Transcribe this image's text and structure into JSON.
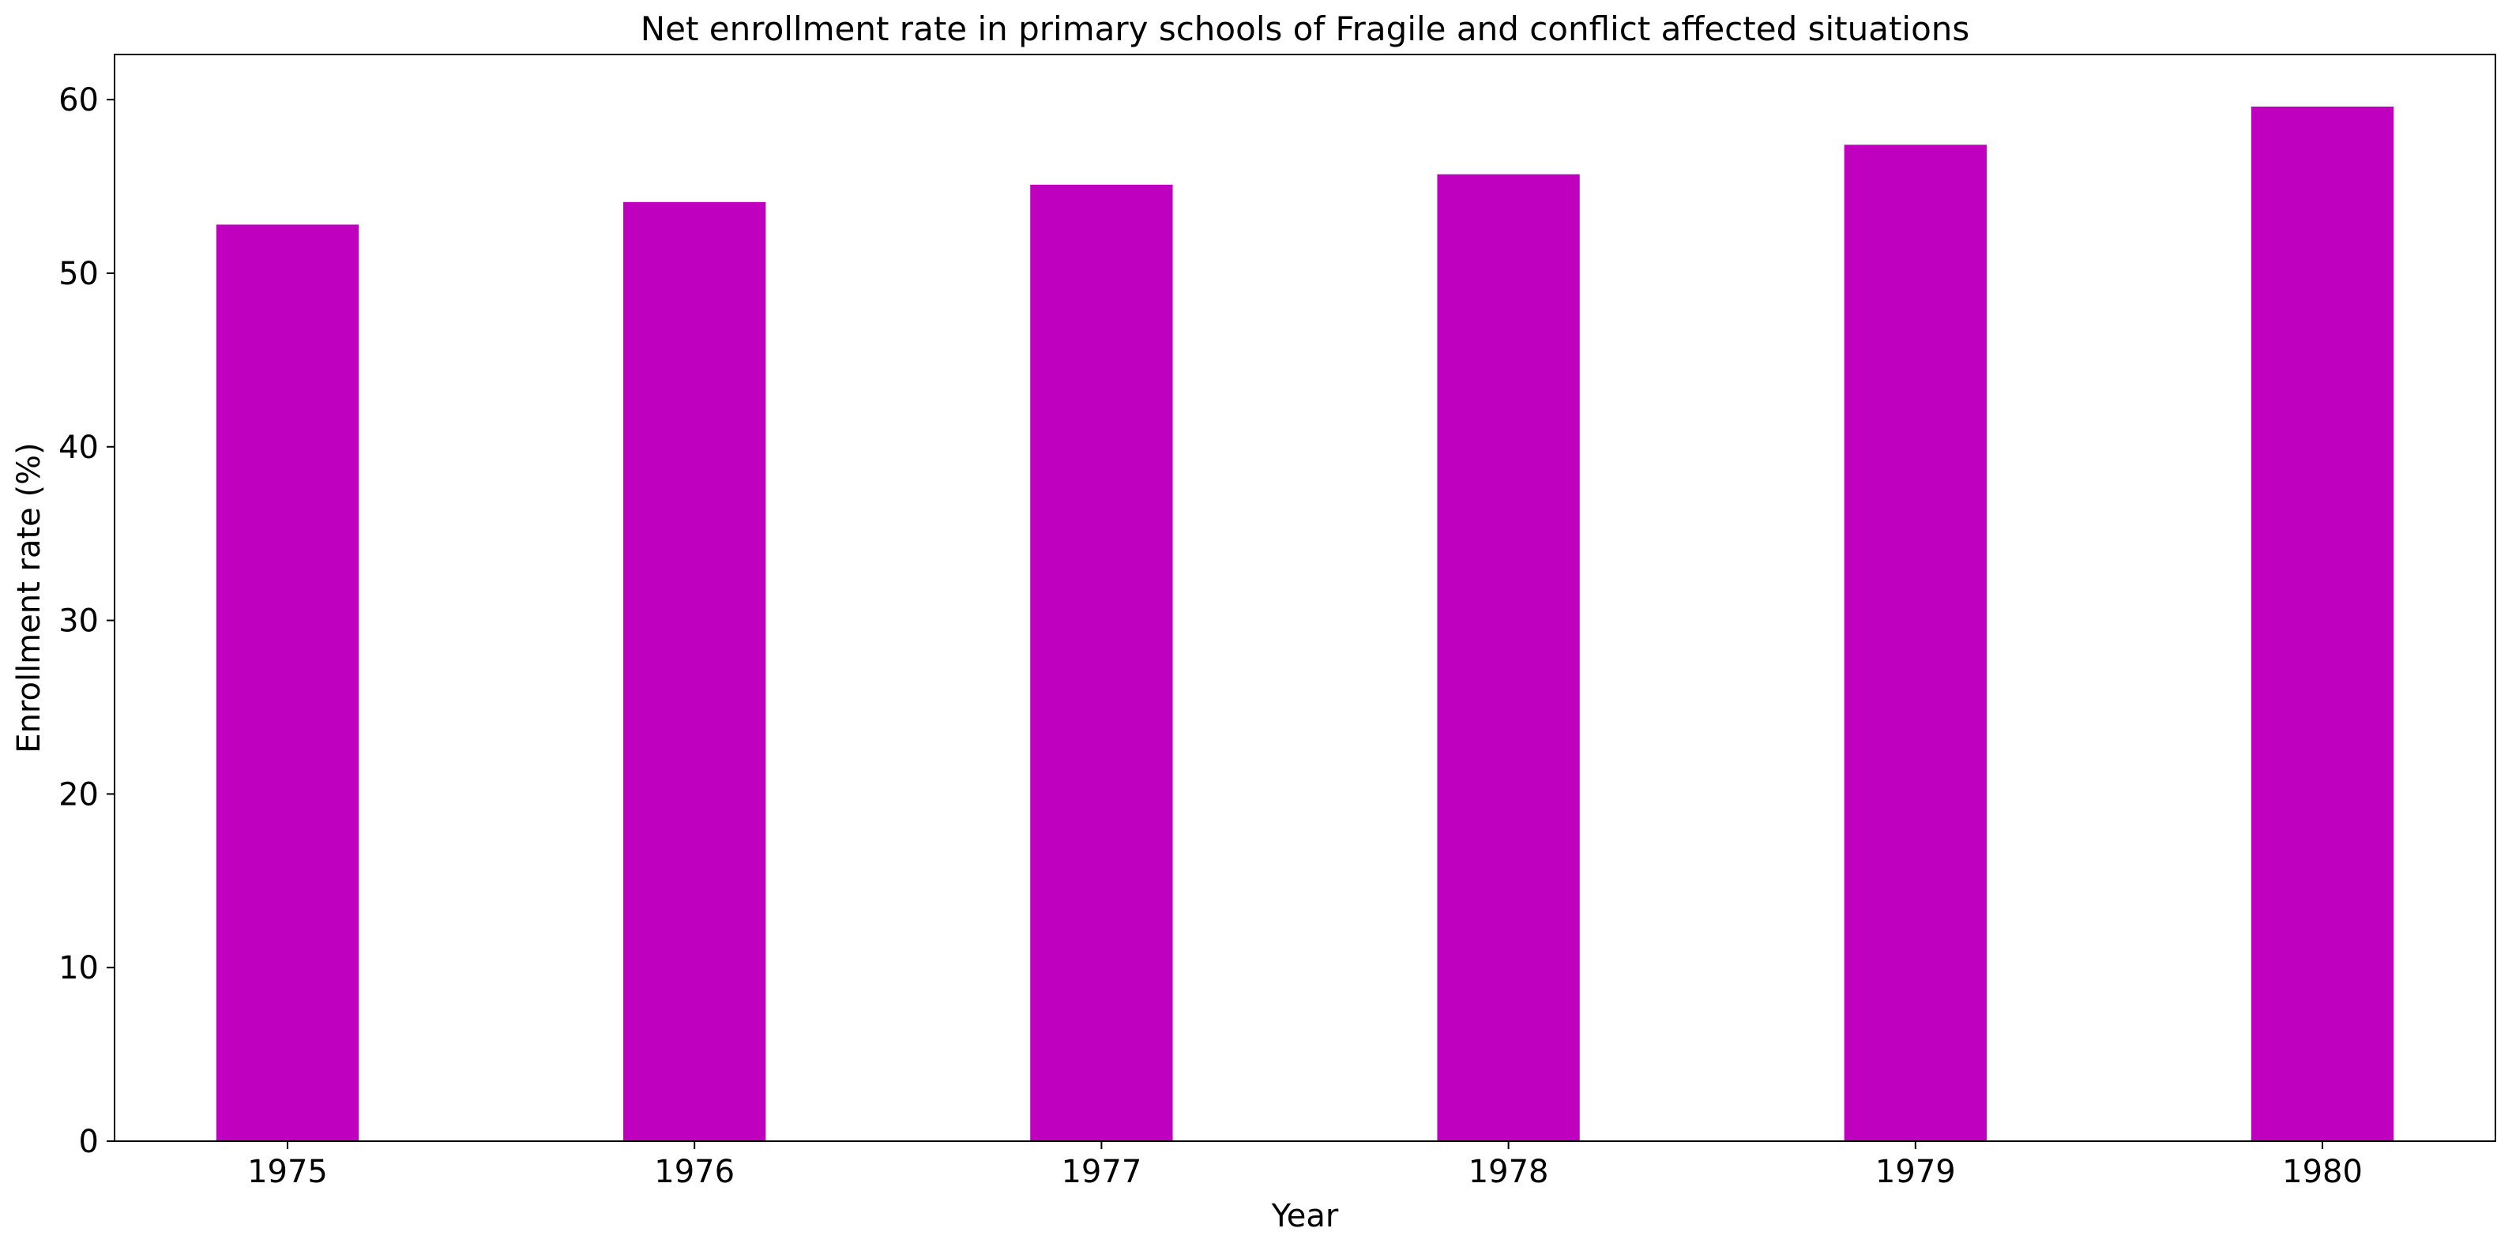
{
  "chart_data": {
    "type": "bar",
    "title": "Net enrollment rate in primary schools of Fragile and conflict affected situations",
    "xlabel": "Year",
    "ylabel": "Enrollment rate (%)",
    "categories": [
      "1975",
      "1976",
      "1977",
      "1978",
      "1979",
      "1980"
    ],
    "values": [
      52.8,
      54.1,
      55.1,
      55.7,
      57.4,
      59.6
    ],
    "ylim": [
      0,
      62.6
    ],
    "yticks": [
      0,
      10,
      20,
      30,
      40,
      50,
      60
    ],
    "grid": false,
    "bar_color": "#bf00bf"
  }
}
